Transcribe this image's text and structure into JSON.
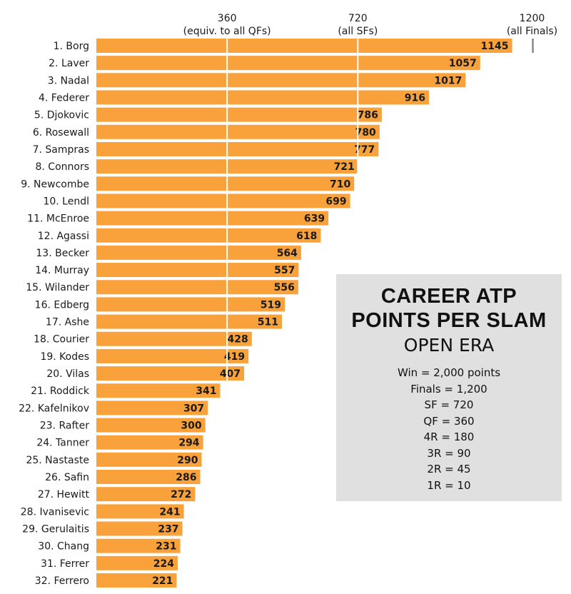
{
  "chart_data": {
    "type": "bar",
    "orientation": "horizontal",
    "categories": [
      "1. Borg",
      "2. Laver",
      "3. Nadal",
      "4. Federer",
      "5. Djokovic",
      "6. Rosewall",
      "7. Sampras",
      "8. Connors",
      "9. Newcombe",
      "10. Lendl",
      "11. McEnroe",
      "12. Agassi",
      "13. Becker",
      "14. Murray",
      "15. Wilander",
      "16. Edberg",
      "17. Ashe",
      "18. Courier",
      "19. Kodes",
      "20. Vilas",
      "21. Roddick",
      "22. Kafelnikov",
      "23. Rafter",
      "24. Tanner",
      "25. Nastaste",
      "26. Safin",
      "27. Hewitt",
      "28. Ivanisevic",
      "29. Gerulaitis",
      "30. Chang",
      "31. Ferrer",
      "32. Ferrero"
    ],
    "values": [
      1145,
      1057,
      1017,
      916,
      786,
      780,
      777,
      721,
      710,
      699,
      639,
      618,
      564,
      557,
      556,
      519,
      511,
      428,
      419,
      407,
      341,
      307,
      300,
      294,
      290,
      286,
      272,
      241,
      237,
      231,
      224,
      221
    ],
    "xlim": [
      0,
      1300
    ],
    "bar_color": "#f9a23b",
    "reference_lines": [
      {
        "value": 360,
        "label": "360",
        "sublabel": "(equiv. to all QFs)"
      },
      {
        "value": 720,
        "label": "720",
        "sublabel": "(all SFs)"
      },
      {
        "value": 1200,
        "label": "1200",
        "sublabel": "(all Finals)"
      }
    ],
    "grid": false
  },
  "legend_box": {
    "title_line1": "CAREER ATP",
    "title_line2": "POINTS PER SLAM",
    "subtitle": "OPEN ERA",
    "lines": [
      "Win = 2,000 points",
      "Finals = 1,200",
      "SF = 720",
      "QF = 360",
      "4R = 180",
      "3R = 90",
      "2R = 45",
      "1R = 10"
    ],
    "background": "#e0e0e0"
  }
}
